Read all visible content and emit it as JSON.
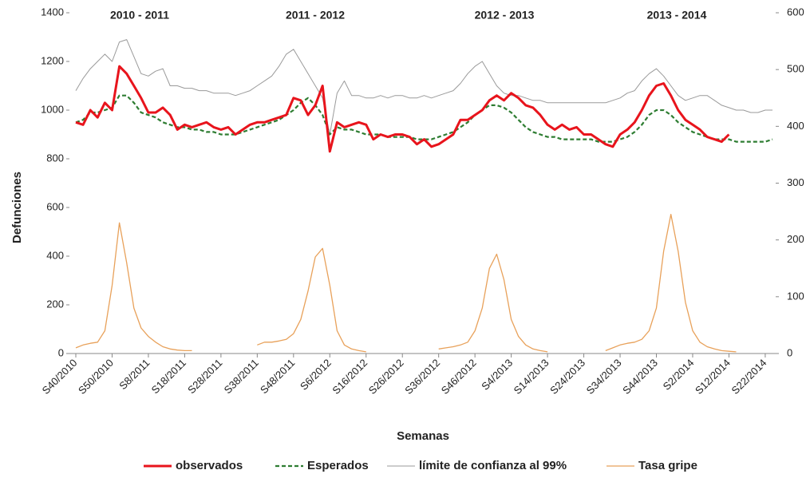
{
  "chart_data": {
    "type": "line",
    "annotations": [
      "2010 - 2011",
      "2011 - 2012",
      "2012 - 2013",
      "2013 - 2014"
    ],
    "x_label": "Semanas",
    "y_label": "Defunciones",
    "categories": [
      "S40/2010",
      null,
      null,
      null,
      null,
      "S50/2010",
      null,
      null,
      null,
      null,
      "S8/2011",
      null,
      null,
      null,
      null,
      "S18/2011",
      null,
      null,
      null,
      null,
      "S28/2011",
      null,
      null,
      null,
      null,
      "S38/2011",
      null,
      null,
      null,
      null,
      "S48/2011",
      null,
      null,
      null,
      null,
      "S6/2012",
      null,
      null,
      null,
      null,
      "S16/2012",
      null,
      null,
      null,
      null,
      "S26/2012",
      null,
      null,
      null,
      null,
      "S36/2012",
      null,
      null,
      null,
      null,
      "S46/2012",
      null,
      null,
      null,
      null,
      "S4/2013",
      null,
      null,
      null,
      null,
      "S14/2013",
      null,
      null,
      null,
      null,
      "S24/2013",
      null,
      null,
      null,
      null,
      "S34/2013",
      null,
      null,
      null,
      null,
      "S44/2013",
      null,
      null,
      null,
      null,
      "S2/2014",
      null,
      null,
      null,
      null,
      "S12/2014",
      null,
      null,
      null,
      null,
      "S22/2014",
      null
    ],
    "ylim": [
      0,
      1400
    ],
    "yticks": [
      0,
      200,
      400,
      600,
      800,
      1000,
      1200,
      1400
    ],
    "y2lim": [
      0,
      600
    ],
    "y2ticks": [
      0,
      100,
      200,
      300,
      400,
      500,
      600
    ],
    "series": [
      {
        "name": "observados",
        "color": "#e8141c",
        "values": [
          950,
          940,
          1000,
          970,
          1030,
          1000,
          1180,
          1150,
          1100,
          1050,
          990,
          990,
          1010,
          980,
          920,
          940,
          930,
          940,
          950,
          930,
          920,
          930,
          900,
          920,
          940,
          950,
          950,
          960,
          970,
          980,
          1050,
          1040,
          980,
          1020,
          1100,
          830,
          950,
          930,
          940,
          950,
          940,
          880,
          900,
          890,
          900,
          900,
          890,
          860,
          880,
          850,
          860,
          880,
          900,
          960,
          960,
          980,
          1000,
          1040,
          1060,
          1040,
          1070,
          1050,
          1020,
          1010,
          980,
          940,
          920,
          940,
          920,
          930,
          900,
          900,
          880,
          860,
          850,
          900,
          920,
          950,
          1000,
          1060,
          1100,
          1110,
          1060,
          1000,
          960,
          940,
          920,
          890,
          880,
          870,
          900,
          null,
          null,
          null,
          null,
          null,
          null
        ]
      },
      {
        "name": "Esperados",
        "color": "#2e7d32",
        "dash": true,
        "values": [
          950,
          960,
          990,
          990,
          1000,
          1010,
          1060,
          1060,
          1030,
          990,
          980,
          970,
          950,
          940,
          930,
          930,
          920,
          920,
          910,
          910,
          900,
          900,
          900,
          910,
          920,
          930,
          940,
          950,
          960,
          980,
          1000,
          1030,
          1050,
          1020,
          980,
          900,
          930,
          920,
          920,
          910,
          900,
          900,
          900,
          890,
          890,
          890,
          890,
          880,
          880,
          880,
          890,
          900,
          910,
          930,
          950,
          980,
          1000,
          1020,
          1020,
          1010,
          990,
          960,
          930,
          910,
          900,
          890,
          890,
          880,
          880,
          880,
          880,
          880,
          870,
          870,
          870,
          880,
          890,
          910,
          940,
          980,
          1000,
          1000,
          980,
          950,
          930,
          910,
          900,
          890,
          880,
          880,
          880,
          870,
          870,
          870,
          870,
          870,
          880
        ]
      },
      {
        "name": "límite de confianza al 99%",
        "color": "#9a9a9a",
        "values": [
          1080,
          1130,
          1170,
          1200,
          1230,
          1200,
          1280,
          1290,
          1220,
          1150,
          1140,
          1160,
          1170,
          1100,
          1100,
          1090,
          1090,
          1080,
          1080,
          1070,
          1070,
          1070,
          1060,
          1070,
          1080,
          1100,
          1120,
          1140,
          1180,
          1230,
          1250,
          1200,
          1150,
          1100,
          1050,
          900,
          1070,
          1120,
          1060,
          1060,
          1050,
          1050,
          1060,
          1050,
          1060,
          1060,
          1050,
          1050,
          1060,
          1050,
          1060,
          1070,
          1080,
          1110,
          1150,
          1180,
          1200,
          1150,
          1100,
          1070,
          1060,
          1060,
          1050,
          1040,
          1040,
          1030,
          1030,
          1030,
          1030,
          1030,
          1030,
          1030,
          1030,
          1030,
          1040,
          1050,
          1070,
          1080,
          1120,
          1150,
          1170,
          1140,
          1100,
          1060,
          1040,
          1050,
          1060,
          1060,
          1040,
          1020,
          1010,
          1000,
          1000,
          990,
          990,
          1000,
          1000
        ]
      },
      {
        "name": "Tasa gripe",
        "color": "#e8a15a",
        "axis": "y2",
        "values": [
          10,
          15,
          18,
          20,
          40,
          120,
          230,
          160,
          80,
          45,
          30,
          20,
          12,
          8,
          6,
          5,
          5,
          null,
          null,
          null,
          null,
          null,
          null,
          null,
          null,
          15,
          20,
          20,
          22,
          25,
          35,
          60,
          110,
          170,
          185,
          120,
          40,
          15,
          8,
          5,
          3,
          null,
          null,
          null,
          null,
          null,
          null,
          null,
          null,
          null,
          8,
          10,
          12,
          15,
          20,
          40,
          80,
          150,
          175,
          130,
          60,
          30,
          15,
          8,
          5,
          3,
          null,
          null,
          null,
          null,
          null,
          null,
          null,
          5,
          10,
          15,
          18,
          20,
          25,
          40,
          80,
          180,
          245,
          180,
          90,
          40,
          20,
          12,
          8,
          5,
          4,
          3,
          null,
          null,
          null,
          null,
          null
        ]
      }
    ]
  }
}
